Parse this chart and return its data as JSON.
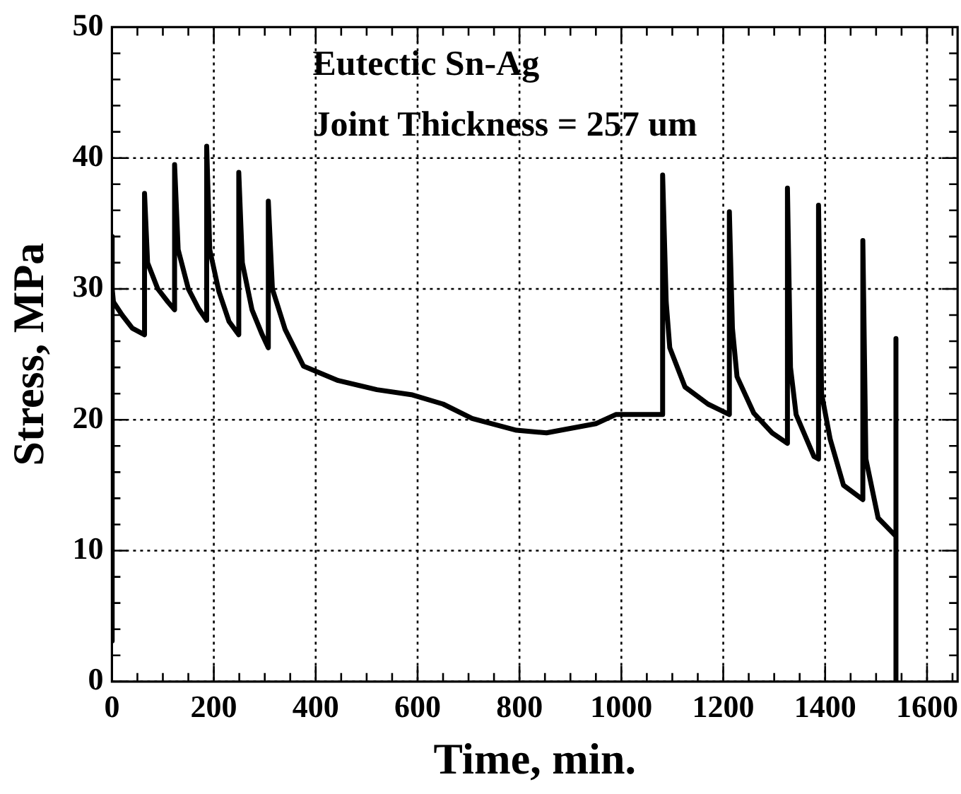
{
  "chart_data": {
    "type": "line",
    "xlabel": "Time, min.",
    "ylabel": "Stress, MPa",
    "annotations": [
      "Eutectic Sn-Ag",
      "Joint Thickness = 257 um"
    ],
    "series": [
      {
        "color": "#000000",
        "x": [
          0,
          0,
          1,
          3,
          20,
          40,
          64,
          64,
          70,
          90,
          110,
          123,
          123,
          130,
          150,
          170,
          186,
          186,
          192,
          210,
          230,
          249,
          249,
          256,
          275,
          295,
          307,
          307,
          315,
          340,
          376,
          444,
          520,
          590,
          650,
          707,
          794,
          853,
          950,
          989,
          1040,
          1081,
          1081,
          1088,
          1095,
          1125,
          1170,
          1212,
          1212,
          1218,
          1227,
          1260,
          1296,
          1326,
          1326,
          1332,
          1343,
          1378,
          1387,
          1387,
          1393,
          1410,
          1436,
          1474,
          1474,
          1480,
          1504,
          1539,
          1539,
          1539
        ],
        "values": [
          3.1,
          34,
          30,
          29,
          28,
          27,
          26.5,
          37.3,
          32,
          30,
          29,
          28.4,
          39.5,
          33,
          30,
          28.5,
          27.6,
          40.9,
          33,
          29.8,
          27.5,
          26.5,
          38.9,
          32,
          28.4,
          26.5,
          25.5,
          36.7,
          30,
          26.9,
          24.1,
          23,
          22.3,
          21.9,
          21.2,
          20.1,
          19.2,
          19,
          19.7,
          20.4,
          20.4,
          20.4,
          38.7,
          29,
          25.5,
          22.5,
          21.2,
          20.4,
          35.9,
          27,
          23.3,
          20.5,
          19,
          18.2,
          37.7,
          24,
          20.4,
          17.2,
          17,
          36.4,
          22,
          18.5,
          15,
          13.9,
          33.7,
          17,
          12.5,
          11.1,
          26.2,
          0
        ]
      }
    ],
    "xlim": [
      0,
      1660
    ],
    "ylim": [
      0,
      50
    ],
    "xticks": [
      0,
      {
        "value": 50,
        "label": null
      },
      {
        "value": 100,
        "label": null
      },
      {
        "value": 150,
        "label": null
      },
      200,
      {
        "value": 250,
        "label": null
      },
      {
        "value": 300,
        "label": null
      },
      {
        "value": 350,
        "label": null
      },
      400,
      {
        "value": 450,
        "label": null
      },
      {
        "value": 500,
        "label": null
      },
      {
        "value": 550,
        "label": null
      },
      600,
      {
        "value": 650,
        "label": null
      },
      {
        "value": 700,
        "label": null
      },
      {
        "value": 750,
        "label": null
      },
      800,
      {
        "value": 850,
        "label": null
      },
      {
        "value": 900,
        "label": null
      },
      {
        "value": 950,
        "label": null
      },
      1000,
      {
        "value": 1050,
        "label": null
      },
      {
        "value": 1100,
        "label": null
      },
      {
        "value": 1150,
        "label": null
      },
      1200,
      {
        "value": 1250,
        "label": null
      },
      {
        "value": 1300,
        "label": null
      },
      {
        "value": 1350,
        "label": null
      },
      1400,
      {
        "value": 1450,
        "label": null
      },
      {
        "value": 1500,
        "label": null
      },
      {
        "value": 1550,
        "label": null
      },
      1600,
      {
        "value": 1650,
        "label": null
      }
    ],
    "yticks": [
      0,
      {
        "value": 2,
        "label": null
      },
      {
        "value": 4,
        "label": null
      },
      {
        "value": 6,
        "label": null
      },
      {
        "value": 8,
        "label": null
      },
      10,
      {
        "value": 12,
        "label": null
      },
      {
        "value": 14,
        "label": null
      },
      {
        "value": 16,
        "label": null
      },
      {
        "value": 18,
        "label": null
      },
      20,
      {
        "value": 22,
        "label": null
      },
      {
        "value": 24,
        "label": null
      },
      {
        "value": 26,
        "label": null
      },
      {
        "value": 28,
        "label": null
      },
      30,
      {
        "value": 32,
        "label": null
      },
      {
        "value": 34,
        "label": null
      },
      {
        "value": 36,
        "label": null
      },
      {
        "value": 38,
        "label": null
      },
      40,
      {
        "value": 42,
        "label": null
      },
      {
        "value": 44,
        "label": null
      },
      {
        "value": 46,
        "label": null
      },
      {
        "value": 48,
        "label": null
      },
      50
    ],
    "grid": true,
    "legend": false,
    "marker": "none",
    "line_style": "solid"
  }
}
